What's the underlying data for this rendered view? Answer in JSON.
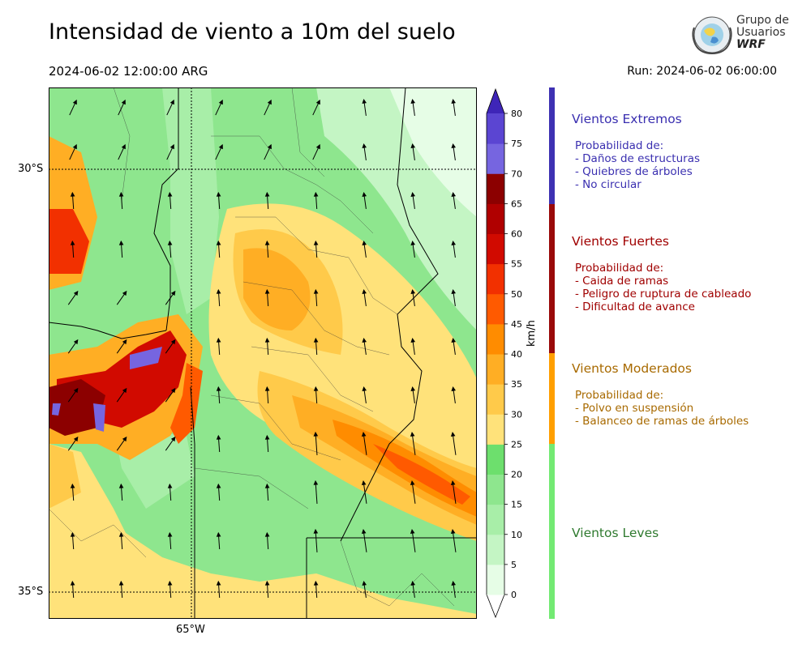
{
  "header": {
    "title": "Intensidad de viento a 10m del suelo",
    "valid_time": "2024-06-02 12:00:00 ARG",
    "run": "Run: 2024-06-02 06:00:00"
  },
  "logo": {
    "line1": "Grupo de",
    "line2": "Usuarios",
    "line3": "WRF"
  },
  "map": {
    "lat_labels": [
      "30°S",
      "35°S"
    ],
    "lon_labels": [
      "65°W"
    ]
  },
  "colorbar": {
    "unit": "km/h",
    "ticks": [
      "0",
      "5",
      "10",
      "15",
      "20",
      "25",
      "30",
      "35",
      "40",
      "45",
      "50",
      "55",
      "60",
      "65",
      "70",
      "75",
      "80"
    ],
    "colors": [
      "#e6fde6",
      "#c4f5c4",
      "#a8eea8",
      "#8ee68e",
      "#6ddf6d",
      "#ffe27a",
      "#ffca4a",
      "#ffae24",
      "#ff8c00",
      "#ff5a00",
      "#f23000",
      "#d10a00",
      "#b00000",
      "#8c0000",
      "#7665e0",
      "#5b45d2",
      "#3e25b8"
    ]
  },
  "legend": {
    "bar_colors": [
      "#3e31b3",
      "#9a0a0a",
      "#ff9f00",
      "#73ea73"
    ],
    "extreme": {
      "title": "Vientos Extremos",
      "color": "#3a2fb0",
      "lines": [
        "Probabilidad de:",
        "- Daños de estructuras",
        "- Quiebres de árboles",
        "- No circular"
      ]
    },
    "strong": {
      "title": "Vientos Fuertes",
      "color": "#a00000",
      "lines": [
        "Probabilidad de:",
        "- Caida de ramas",
        "- Peligro de ruptura de cableado",
        "- Dificultad de avance"
      ]
    },
    "moderate": {
      "title": "Vientos Moderados",
      "color": "#a86a00",
      "lines": [
        "Probabilidad de:",
        "- Polvo en suspensión",
        "- Balanceo de ramas de árboles"
      ]
    },
    "light": {
      "title": "Vientos Leves",
      "color": "#2f7a2f"
    }
  }
}
